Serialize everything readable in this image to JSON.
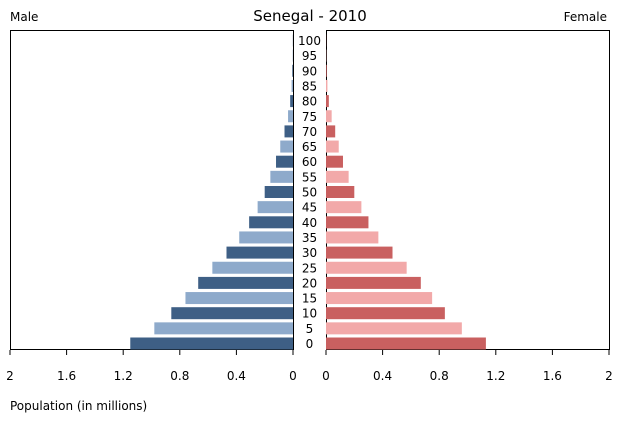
{
  "chart_data": {
    "type": "bar",
    "subtype": "population-pyramid",
    "title": "Senegal - 2010",
    "left_label": "Male",
    "right_label": "Female",
    "xlabel": "Population (in millions)",
    "xlim": [
      0,
      2
    ],
    "x_ticks": [
      "2",
      "1.6",
      "1.2",
      "0.8",
      "0.4",
      "0",
      "0",
      "0.4",
      "0.8",
      "1.2",
      "1.6",
      "2"
    ],
    "age_groups": [
      "0",
      "5",
      "10",
      "15",
      "20",
      "25",
      "30",
      "35",
      "40",
      "45",
      "50",
      "55",
      "60",
      "65",
      "70",
      "75",
      "80",
      "85",
      "90",
      "95",
      "100"
    ],
    "series": [
      {
        "name": "Male",
        "colors": [
          "#3e5f85",
          "#8eaacb"
        ],
        "values": [
          1.15,
          0.98,
          0.86,
          0.76,
          0.67,
          0.57,
          0.47,
          0.38,
          0.31,
          0.25,
          0.2,
          0.16,
          0.12,
          0.09,
          0.06,
          0.035,
          0.02,
          0.01,
          0.005,
          0.002,
          0.001
        ]
      },
      {
        "name": "Female",
        "colors": [
          "#c96060",
          "#f2a9a9"
        ],
        "values": [
          1.13,
          0.96,
          0.84,
          0.75,
          0.67,
          0.57,
          0.47,
          0.37,
          0.3,
          0.25,
          0.2,
          0.16,
          0.12,
          0.09,
          0.065,
          0.04,
          0.02,
          0.01,
          0.005,
          0.002,
          0.001
        ]
      }
    ]
  }
}
